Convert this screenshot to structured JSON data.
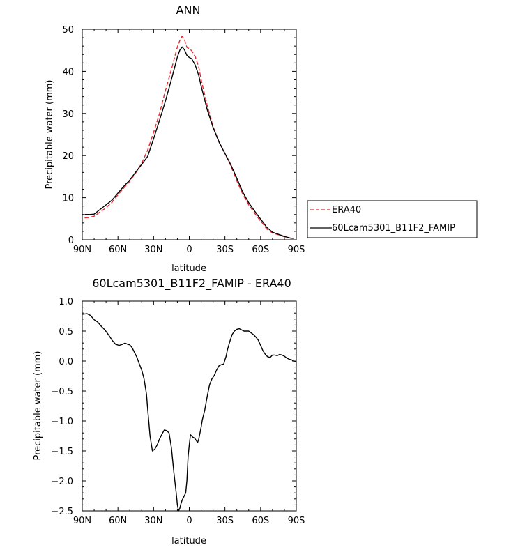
{
  "chart_data": [
    {
      "type": "line",
      "title": "ANN",
      "xlabel": "latitude",
      "ylabel": "Precipitable water (mm)",
      "xlim": [
        90,
        -90
      ],
      "ylim": [
        0,
        50
      ],
      "x_tick_values": [
        90,
        60,
        30,
        0,
        -30,
        -60,
        -90
      ],
      "x_tick_labels": [
        "90N",
        "60N",
        "30N",
        "0",
        "30S",
        "60S",
        "90S"
      ],
      "y_tick_values": [
        0,
        10,
        20,
        30,
        40,
        50
      ],
      "y_tick_labels": [
        "0",
        "10",
        "20",
        "30",
        "40",
        "50"
      ],
      "legend_position": "right, outside plot, lower",
      "series": [
        {
          "name": "ERA40",
          "color": "#e8262e",
          "dash": "dashed",
          "x": [
            88,
            84,
            80,
            75,
            70,
            65,
            60,
            55,
            50,
            45,
            40,
            35,
            30,
            25,
            20,
            15,
            10,
            8,
            6,
            4,
            2,
            0,
            -2,
            -5,
            -8,
            -10,
            -15,
            -20,
            -25,
            -30,
            -35,
            -40,
            -45,
            -50,
            -55,
            -60,
            -62,
            -65,
            -70,
            -75,
            -80,
            -85,
            -88
          ],
          "y": [
            5.2,
            5.3,
            5.6,
            6.6,
            7.6,
            8.9,
            10.7,
            12.3,
            13.9,
            15.9,
            18.2,
            21.3,
            25.5,
            30.0,
            35.5,
            40.5,
            45.8,
            47.3,
            48.4,
            47.5,
            45.7,
            45.4,
            44.9,
            43.5,
            41.0,
            38.0,
            32.0,
            26.9,
            23.3,
            20.5,
            17.5,
            14.0,
            10.8,
            8.3,
            6.3,
            4.4,
            3.8,
            2.6,
            1.6,
            1.2,
            0.7,
            0.4,
            0.3
          ]
        },
        {
          "name": "60Lcam5301_B11F2_FAMIP",
          "color": "#000000",
          "dash": "solid",
          "x": [
            88,
            84,
            80,
            75,
            70,
            65,
            60,
            55,
            50,
            45,
            40,
            35,
            30,
            25,
            20,
            15,
            10,
            8,
            6,
            4,
            2,
            0,
            -2,
            -5,
            -8,
            -10,
            -15,
            -20,
            -25,
            -30,
            -35,
            -40,
            -45,
            -50,
            -55,
            -60,
            -62,
            -65,
            -70,
            -75,
            -80,
            -85,
            -88
          ],
          "y": [
            6.0,
            6.0,
            6.1,
            7.2,
            8.3,
            9.4,
            11.1,
            12.7,
            14.2,
            16.1,
            17.9,
            19.8,
            24.0,
            28.4,
            33.0,
            38.1,
            43.4,
            45.0,
            45.8,
            45.1,
            43.8,
            43.3,
            43.0,
            41.5,
            39.0,
            36.5,
            31.0,
            26.7,
            23.2,
            20.5,
            17.8,
            14.6,
            11.3,
            8.8,
            6.8,
            4.9,
            4.2,
            3.0,
            1.8,
            1.3,
            0.8,
            0.4,
            0.3
          ]
        }
      ]
    },
    {
      "type": "line",
      "title": "60Lcam5301_B11F2_FAMIP - ERA40",
      "xlabel": "latitude",
      "ylabel": "Precipitable water (mm)",
      "xlim": [
        90,
        -90
      ],
      "ylim": [
        -2.5,
        1.0
      ],
      "x_tick_values": [
        90,
        60,
        30,
        0,
        -30,
        -60,
        -90
      ],
      "x_tick_labels": [
        "90N",
        "60N",
        "30N",
        "0",
        "30S",
        "60S",
        "90S"
      ],
      "y_tick_values": [
        1.0,
        0.5,
        0.0,
        -0.5,
        -1.0,
        -1.5,
        -2.0,
        -2.5
      ],
      "y_tick_labels": [
        "1.0",
        "0.5",
        "0.0",
        "−0.5",
        "−1.0",
        "−1.5",
        "−2.0",
        "−2.5"
      ],
      "series": [
        {
          "color": "#000000",
          "dash": "solid",
          "x": [
            90,
            86,
            83,
            80,
            77,
            74,
            71,
            68,
            65,
            62,
            59,
            56,
            54,
            52,
            50,
            48,
            46,
            44,
            42,
            40,
            38,
            36,
            35,
            33,
            31,
            29,
            27,
            25,
            23,
            21,
            19,
            17,
            15,
            13,
            11,
            10,
            9,
            8,
            7,
            6,
            5,
            4,
            3,
            2,
            1,
            0,
            -1,
            -2,
            -3,
            -4,
            -5,
            -6,
            -7,
            -8,
            -9,
            -10,
            -11,
            -13,
            -15,
            -17,
            -19,
            -21,
            -23,
            -25,
            -27,
            -29,
            -30,
            -31,
            -32,
            -34,
            -36,
            -38,
            -40,
            -42,
            -44,
            -46,
            -48,
            -50,
            -52,
            -54,
            -56,
            -58,
            -60,
            -62,
            -64,
            -66,
            -68,
            -70,
            -72,
            -74,
            -76,
            -78,
            -80,
            -82,
            -84,
            -86,
            -88,
            -90
          ],
          "y": [
            0.78,
            0.79,
            0.76,
            0.69,
            0.65,
            0.58,
            0.52,
            0.44,
            0.35,
            0.28,
            0.26,
            0.28,
            0.3,
            0.28,
            0.27,
            0.22,
            0.14,
            0.06,
            -0.05,
            -0.15,
            -0.3,
            -0.55,
            -0.8,
            -1.25,
            -1.5,
            -1.47,
            -1.4,
            -1.3,
            -1.22,
            -1.15,
            -1.16,
            -1.2,
            -1.45,
            -1.85,
            -2.2,
            -2.4,
            -2.5,
            -2.46,
            -2.38,
            -2.32,
            -2.28,
            -2.24,
            -2.2,
            -2.0,
            -1.6,
            -1.4,
            -1.23,
            -1.25,
            -1.27,
            -1.28,
            -1.3,
            -1.33,
            -1.36,
            -1.3,
            -1.2,
            -1.1,
            -0.98,
            -0.82,
            -0.6,
            -0.4,
            -0.3,
            -0.24,
            -0.15,
            -0.08,
            -0.06,
            -0.05,
            0.02,
            0.08,
            0.18,
            0.32,
            0.44,
            0.5,
            0.53,
            0.54,
            0.52,
            0.5,
            0.5,
            0.5,
            0.47,
            0.44,
            0.4,
            0.35,
            0.26,
            0.17,
            0.11,
            0.07,
            0.06,
            0.1,
            0.1,
            0.09,
            0.11,
            0.1,
            0.08,
            0.05,
            0.03,
            0.02,
            0.0,
            -0.01
          ]
        }
      ]
    }
  ]
}
